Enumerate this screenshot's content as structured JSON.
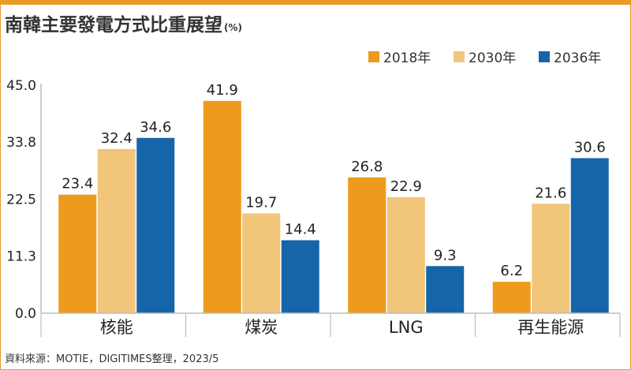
{
  "title": "南韓主要發電方式比重展望",
  "title_unit": "(%)",
  "source": "資料來源：MOTIE，DIGITIMES整理，2023/5",
  "colors": {
    "s2018": "#ee9a1c",
    "s2030": "#f1c57a",
    "s2036": "#1565a8",
    "accent": "#ee9a1c"
  },
  "chart_data": {
    "type": "bar",
    "categories": [
      "核能",
      "煤炭",
      "LNG",
      "再生能源"
    ],
    "series": [
      {
        "name": "2018年",
        "values": [
          23.4,
          41.9,
          26.8,
          6.2
        ]
      },
      {
        "name": "2030年",
        "values": [
          32.4,
          19.7,
          22.9,
          21.6
        ]
      },
      {
        "name": "2036年",
        "values": [
          34.6,
          14.4,
          9.3,
          30.6
        ]
      }
    ],
    "yticks": [
      "0.0",
      "11.3",
      "22.5",
      "33.8",
      "45.0"
    ],
    "ylim": [
      0,
      45
    ],
    "legend_position": "top-right",
    "grid": false
  }
}
